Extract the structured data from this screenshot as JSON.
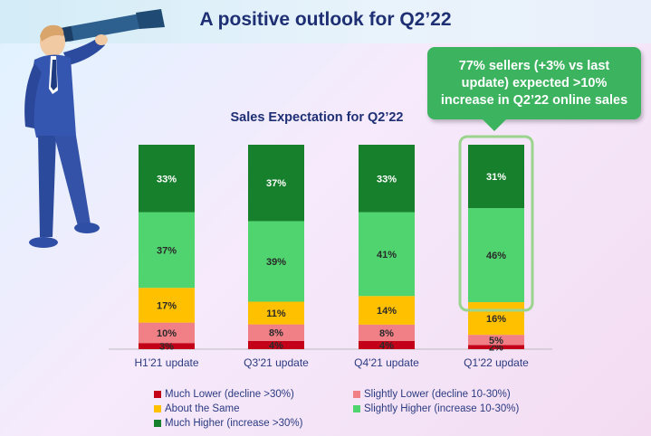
{
  "header": {
    "title": "A positive outlook for Q2’22"
  },
  "callout": {
    "text": "77% sellers (+3% vs last update) expected >10% increase in Q2’22 online sales"
  },
  "colors": {
    "much_lower": "#c40019",
    "slightly_lower": "#f07f86",
    "about_same": "#ffc000",
    "slightly_higher": "#4fd46f",
    "much_higher": "#17802c",
    "highlight": "#9ad48e"
  },
  "chart_data": {
    "type": "bar",
    "stacked": true,
    "percent": true,
    "title": "Sales Expectation for Q2’22",
    "categories": [
      "H1'21 update",
      "Q3'21 update",
      "Q4'21 update",
      "Q1'22 update"
    ],
    "series": [
      {
        "name": "Much Lower (decline >30%)",
        "color": "#c40019",
        "values": [
          3,
          4,
          4,
          2
        ],
        "labels": [
          "3%",
          "4%",
          "4%",
          "2%"
        ]
      },
      {
        "name": "Slightly Lower (decline 10-30%)",
        "color": "#f07f86",
        "values": [
          10,
          8,
          8,
          5
        ],
        "labels": [
          "10%",
          "8%",
          "8%",
          "5%"
        ]
      },
      {
        "name": "About the Same",
        "color": "#ffc000",
        "values": [
          17,
          11,
          14,
          16
        ],
        "labels": [
          "17%",
          "11%",
          "14%",
          "16%"
        ]
      },
      {
        "name": "Slightly Higher (increase 10-30%)",
        "color": "#4fd46f",
        "values": [
          37,
          39,
          41,
          46
        ],
        "labels": [
          "37%",
          "39%",
          "41%",
          "46%"
        ]
      },
      {
        "name": "Much Higher (increase >30%)",
        "color": "#17802c",
        "values": [
          33,
          37,
          33,
          31
        ],
        "labels": [
          "33%",
          "37%",
          "33%",
          "31%"
        ]
      }
    ],
    "legend_position": "bottom",
    "highlight_category": "Q1'22 update"
  }
}
